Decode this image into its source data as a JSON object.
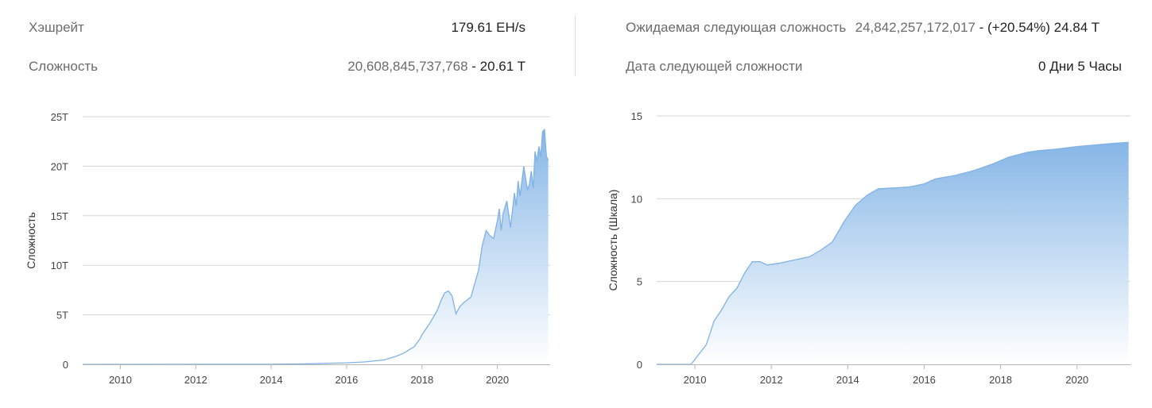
{
  "stats": {
    "hashrate_label": "Хэшрейт",
    "hashrate_value": "179.61 EH/s",
    "difficulty_label": "Сложность",
    "difficulty_value": "20,608,845,737,768",
    "difficulty_short": "20.61 T",
    "next_difficulty_label": "Ожидаемая следующая сложность",
    "next_difficulty_value": "24,842,257,172,017",
    "next_difficulty_change": "(+20.54%) 24.84 T",
    "next_date_label": "Дата следующей сложности",
    "next_date_value": "0 Дни 5 Часы"
  },
  "colors": {
    "line": "#7fb2e5",
    "fill_top": "#7fb2e5",
    "fill_bottom": "#ffffff",
    "grid": "#d6d6d6"
  },
  "chart_data": [
    {
      "type": "area",
      "ylabel": "Сложность",
      "xlim": [
        2009,
        2021.4
      ],
      "ylim": [
        0,
        25
      ],
      "x_ticks": [
        2010,
        2012,
        2014,
        2016,
        2018,
        2020
      ],
      "y_ticks": [
        0,
        5,
        10,
        15,
        20,
        25
      ],
      "y_tick_labels": [
        "0",
        "5T",
        "10T",
        "15T",
        "20T",
        "25T"
      ],
      "x": [
        2009.0,
        2014.0,
        2015.0,
        2016.0,
        2016.5,
        2017.0,
        2017.3,
        2017.5,
        2017.8,
        2017.95,
        2018.0,
        2018.2,
        2018.4,
        2018.5,
        2018.6,
        2018.7,
        2018.8,
        2018.9,
        2019.0,
        2019.1,
        2019.3,
        2019.5,
        2019.6,
        2019.7,
        2019.8,
        2019.9,
        2020.0,
        2020.05,
        2020.1,
        2020.15,
        2020.25,
        2020.35,
        2020.45,
        2020.5,
        2020.55,
        2020.6,
        2020.7,
        2020.8,
        2020.85,
        2020.9,
        2020.95,
        2021.0,
        2021.05,
        2021.1,
        2021.15,
        2021.2,
        2021.25,
        2021.3,
        2021.35
      ],
      "y": [
        0,
        0.01,
        0.06,
        0.15,
        0.25,
        0.45,
        0.8,
        1.1,
        1.8,
        2.6,
        3.0,
        4.1,
        5.4,
        6.4,
        7.2,
        7.4,
        6.9,
        5.1,
        5.8,
        6.2,
        6.8,
        9.5,
        12.0,
        13.5,
        13.0,
        12.7,
        14.5,
        15.7,
        13.5,
        15.2,
        16.5,
        13.8,
        17.3,
        16.0,
        18.5,
        17.0,
        20.0,
        17.6,
        18.2,
        19.5,
        17.8,
        21.5,
        20.5,
        22.0,
        21.0,
        23.5,
        23.7,
        21.0,
        20.6
      ]
    },
    {
      "type": "area",
      "ylabel": "Сложность (Шкала)",
      "xlim": [
        2009,
        2021.4
      ],
      "ylim": [
        0,
        15
      ],
      "x_ticks": [
        2010,
        2012,
        2014,
        2016,
        2018,
        2020
      ],
      "y_ticks": [
        0,
        5,
        10,
        15
      ],
      "y_tick_labels": [
        "0",
        "5",
        "10",
        "15"
      ],
      "x": [
        2009.0,
        2009.9,
        2010.1,
        2010.3,
        2010.5,
        2010.7,
        2010.9,
        2011.1,
        2011.3,
        2011.5,
        2011.7,
        2011.9,
        2012.2,
        2012.6,
        2013.0,
        2013.3,
        2013.6,
        2013.9,
        2014.2,
        2014.5,
        2014.8,
        2015.2,
        2015.6,
        2016.0,
        2016.3,
        2016.8,
        2017.3,
        2017.8,
        2018.2,
        2018.7,
        2019.0,
        2019.5,
        2020.0,
        2020.5,
        2021.0,
        2021.35
      ],
      "y": [
        0,
        0,
        0.6,
        1.2,
        2.6,
        3.3,
        4.1,
        4.6,
        5.5,
        6.2,
        6.2,
        6.0,
        6.1,
        6.3,
        6.5,
        6.9,
        7.4,
        8.6,
        9.6,
        10.2,
        10.6,
        10.65,
        10.7,
        10.9,
        11.2,
        11.4,
        11.7,
        12.1,
        12.5,
        12.8,
        12.9,
        13.0,
        13.15,
        13.25,
        13.35,
        13.4
      ]
    }
  ]
}
